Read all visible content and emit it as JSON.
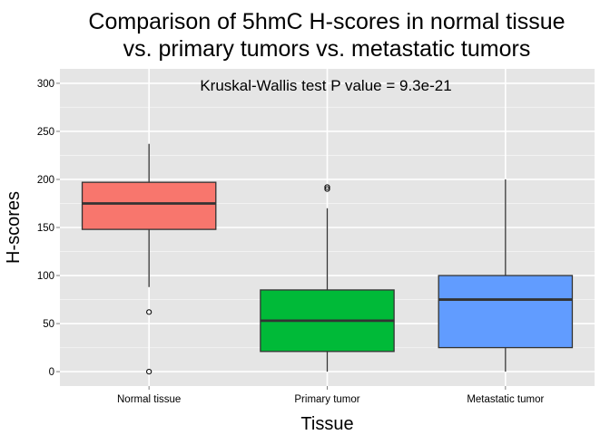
{
  "chart_data": {
    "type": "boxplot",
    "title_line1": "Comparison of 5hmC H-scores in normal tissue",
    "title_line2": "vs. primary tumors vs. metastatic tumors",
    "annotation": "Kruskal-Wallis test P value = 9.3e-21",
    "xlabel": "Tissue",
    "ylabel": "H-scores",
    "ylim": [
      -15,
      315
    ],
    "yticks": [
      0,
      50,
      100,
      150,
      200,
      250,
      300
    ],
    "grid": true,
    "legend": "none",
    "categories": [
      "Normal tissue",
      "Primary tumor",
      "Metastatic tumor"
    ],
    "boxes": [
      {
        "name": "Normal tissue",
        "whisker_low": 88,
        "q1": 148,
        "median": 175,
        "q3": 197,
        "whisker_high": 237,
        "outliers": [
          62,
          0
        ],
        "color": "#F8766D"
      },
      {
        "name": "Primary tumor",
        "whisker_low": 0,
        "q1": 21,
        "median": 53,
        "q3": 85,
        "whisker_high": 170,
        "outliers": [
          190,
          192
        ],
        "color": "#00BA38"
      },
      {
        "name": "Metastatic tumor",
        "whisker_low": 0,
        "q1": 25,
        "median": 75,
        "q3": 100,
        "whisker_high": 200,
        "outliers": [],
        "color": "#619CFF"
      }
    ]
  }
}
